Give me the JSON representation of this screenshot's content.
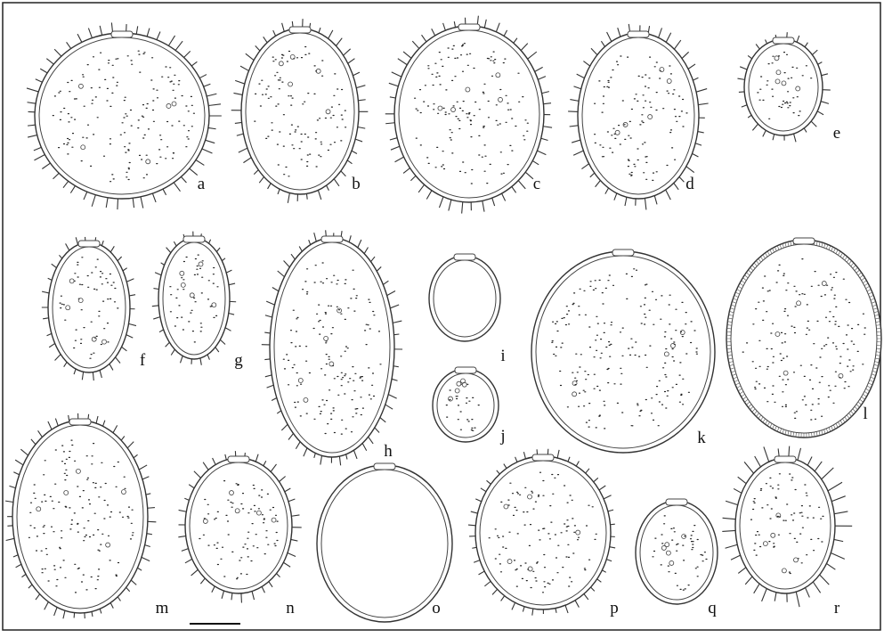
{
  "labels": [
    "a",
    "b",
    "c",
    "d",
    "e",
    "f",
    "g",
    "h",
    "i",
    "j",
    "k",
    "l",
    "m",
    "n",
    "o",
    "p",
    "q",
    "r"
  ]
}
